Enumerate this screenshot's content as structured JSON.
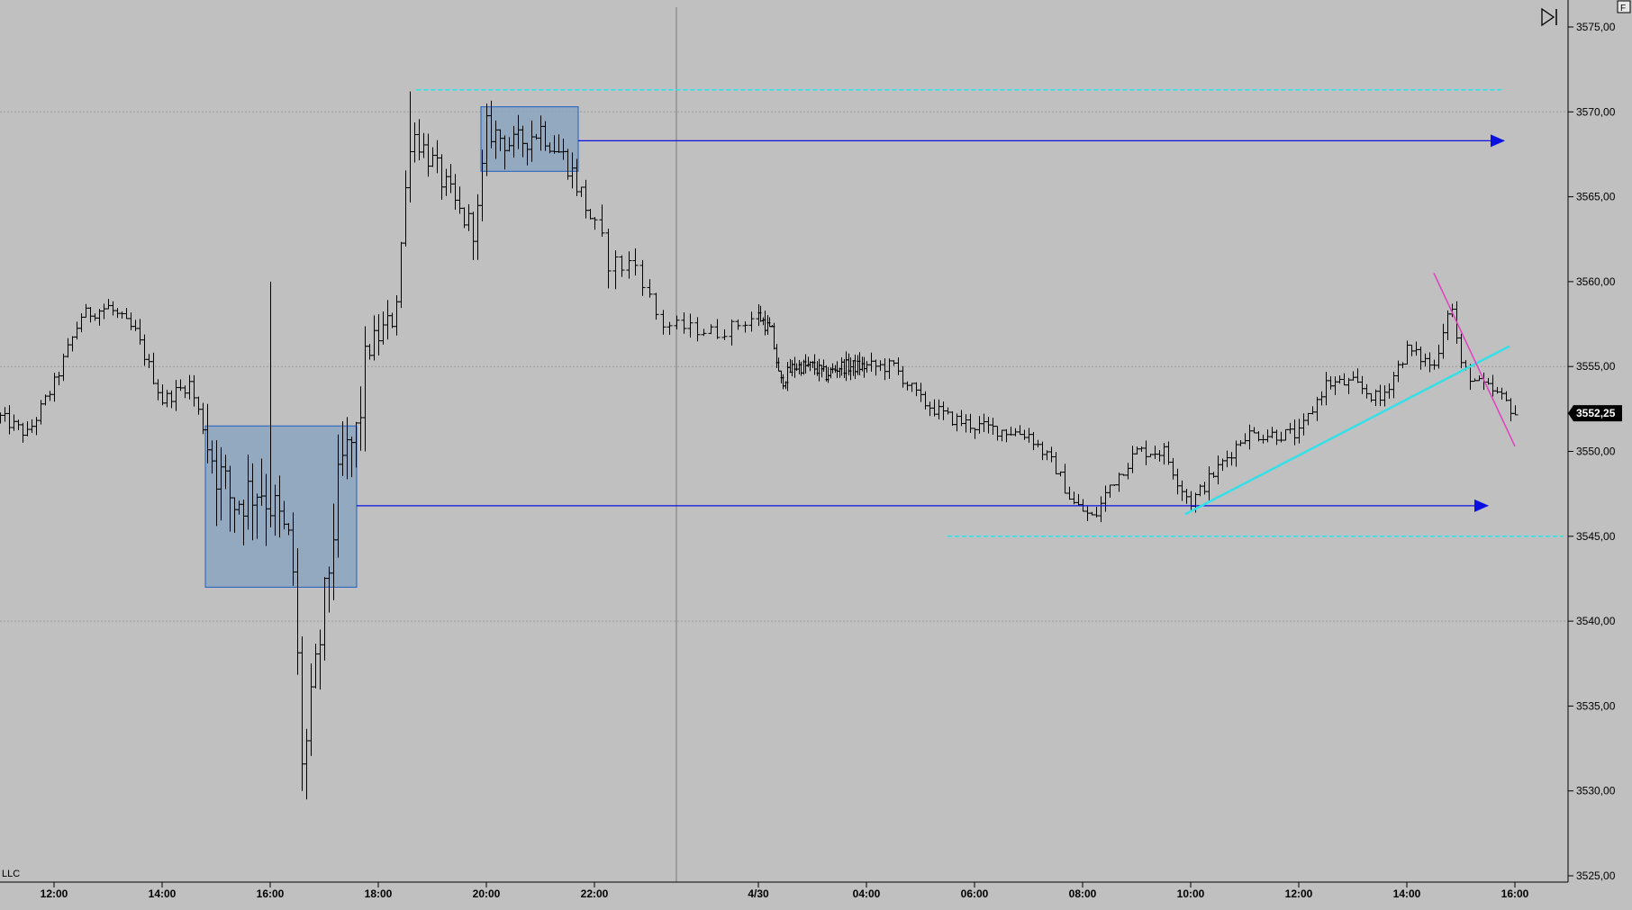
{
  "watermark": "LLC",
  "corner_button": "F",
  "current_price_label": "3552,25",
  "colors": {
    "background": "#c0c0c0",
    "bar": "#000000",
    "grid": "#9a9a9a",
    "zone_fill": "#8aa4c0",
    "zone_border": "#1f5fbf",
    "arrow_line": "#0a10e0",
    "level_line": "#2fe0e0",
    "trend_up": "#33e0e8",
    "trend_down": "#e040c0"
  },
  "chart_data": {
    "type": "ohlc",
    "x": [
      "12:00",
      "14:00",
      "16:00",
      "18:00",
      "20:00",
      "22:00",
      "4/30",
      "04:00",
      "06:00",
      "08:00",
      "10:00",
      "12:00",
      "14:00",
      "16:00"
    ],
    "ylim": [
      3525,
      3575
    ],
    "y_ticks": [
      "3525,00",
      "3530,00",
      "3535,00",
      "3540,00",
      "3545,00",
      "3550,00",
      "3555,00",
      "3560,00",
      "3565,00",
      "3570,00",
      "3575,00"
    ],
    "grid": "horizontal dotted at 3540, 3555, 3570; vertical session divider between 22:00 and 4/30",
    "close_path": [
      [
        11.0,
        3552
      ],
      [
        11.5,
        3551
      ],
      [
        12.0,
        3554
      ],
      [
        12.5,
        3558
      ],
      [
        13.0,
        3558.5
      ],
      [
        13.5,
        3557
      ],
      [
        14.0,
        3553
      ],
      [
        14.5,
        3554
      ],
      [
        15.0,
        3549
      ],
      [
        15.3,
        3547
      ],
      [
        15.8,
        3548
      ],
      [
        16.0,
        3547
      ],
      [
        16.4,
        3544
      ],
      [
        16.6,
        3531
      ],
      [
        17.0,
        3541
      ],
      [
        17.3,
        3549
      ],
      [
        17.6,
        3551
      ],
      [
        17.8,
        3556
      ],
      [
        18.3,
        3558
      ],
      [
        18.6,
        3569
      ],
      [
        19.0,
        3567
      ],
      [
        19.5,
        3564
      ],
      [
        19.8,
        3563
      ],
      [
        20.0,
        3569
      ],
      [
        20.5,
        3568
      ],
      [
        21.0,
        3569
      ],
      [
        21.5,
        3567
      ],
      [
        21.9,
        3564
      ],
      [
        22.2,
        3561
      ],
      [
        22.5,
        3561
      ],
      [
        22.8,
        3557.5
      ],
      [
        23.5,
        3557
      ],
      [
        24.0,
        3558
      ],
      [
        24.5,
        3557
      ],
      [
        24.8,
        3554
      ],
      [
        25.3,
        3555
      ],
      [
        26.0,
        3555
      ],
      [
        26.5,
        3554.5
      ],
      [
        27.0,
        3555
      ],
      [
        27.5,
        3555
      ],
      [
        28.5,
        3555
      ],
      [
        29.0,
        3553
      ],
      [
        29.5,
        3552
      ],
      [
        30.0,
        3551.5
      ],
      [
        31.0,
        3551
      ],
      [
        31.5,
        3549
      ],
      [
        31.8,
        3547
      ],
      [
        32.2,
        3546
      ],
      [
        32.5,
        3548
      ],
      [
        33.0,
        3550
      ],
      [
        33.5,
        3550
      ],
      [
        33.8,
        3548
      ],
      [
        34.0,
        3547
      ],
      [
        34.5,
        3549
      ],
      [
        35.0,
        3551
      ],
      [
        35.5,
        3551
      ],
      [
        36.0,
        3551
      ],
      [
        36.5,
        3554
      ],
      [
        37.0,
        3554
      ],
      [
        37.5,
        3553
      ],
      [
        38.0,
        3556
      ],
      [
        38.5,
        3555
      ],
      [
        38.8,
        3559
      ],
      [
        39.0,
        3555
      ],
      [
        39.3,
        3554
      ],
      [
        39.6,
        3553.5
      ],
      [
        39.8,
        3553
      ],
      [
        40.0,
        3552.25
      ]
    ],
    "annotations": [
      {
        "kind": "zone",
        "from": 14.8,
        "to": 17.6,
        "low": 3542,
        "high": 3551.5,
        "ray_level": 3546.8,
        "ray_to": 39.5
      },
      {
        "kind": "zone",
        "from": 19.9,
        "to": 21.7,
        "low": 3566.5,
        "high": 3570.3,
        "ray_level": 3568.3,
        "ray_to": 39.8
      },
      {
        "kind": "level",
        "value": 3571.3,
        "from": 18.7,
        "to": 39.8
      },
      {
        "kind": "level",
        "value": 3545,
        "from": 29.5,
        "to": 40.9
      },
      {
        "kind": "trend_up",
        "p1": [
          33.9,
          3546.3
        ],
        "p2": [
          39.9,
          3556.2
        ]
      },
      {
        "kind": "trend_down",
        "p1": [
          38.5,
          3560.5
        ],
        "p2": [
          40.0,
          3550.3
        ]
      }
    ]
  }
}
